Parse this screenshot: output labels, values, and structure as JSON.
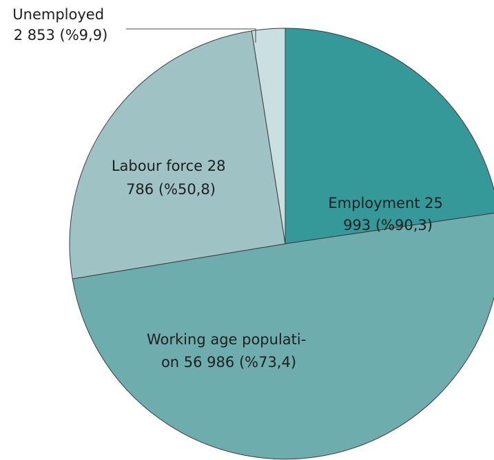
{
  "chart_data": {
    "type": "pie",
    "slices": [
      {
        "key": "employment",
        "label_lines": [
          "Employment 25",
          "993 (%90,3)"
        ],
        "value": 25993,
        "percent_text": "%90,3",
        "color": "#35999a"
      },
      {
        "key": "working-age",
        "label_lines": [
          "Working age populati-",
          "on 56 986 (%73,4)"
        ],
        "value": 56986,
        "percent_text": "%73,4",
        "color": "#6eadad"
      },
      {
        "key": "labour-force",
        "label_lines": [
          "Labour force 28",
          "786 (%50,8)"
        ],
        "value": 28786,
        "percent_text": "%50,8",
        "color": "#9fc3c4"
      },
      {
        "key": "unemployed",
        "label_lines": [
          "Unemployed",
          "2 853 (%9,9)"
        ],
        "value": 2853,
        "percent_text": "%9,9",
        "color": "#c9dfe2"
      }
    ]
  }
}
